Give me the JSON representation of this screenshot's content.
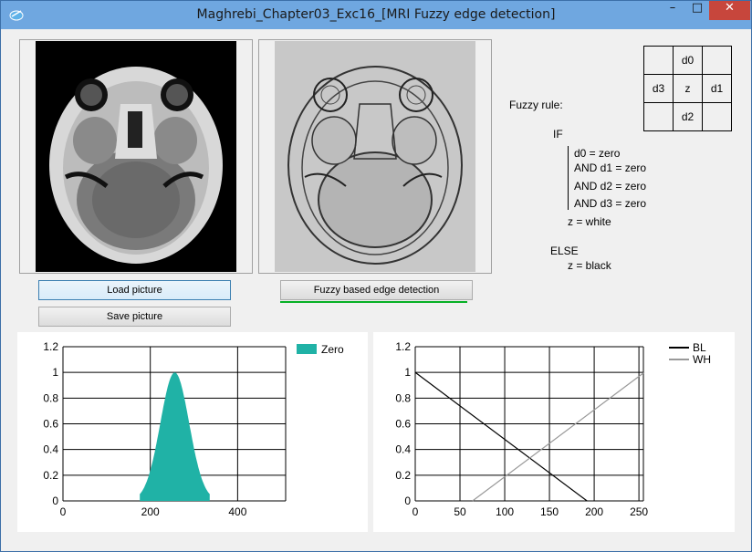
{
  "window": {
    "title": "Maghrebi_Chapter03_Exc16_[MRI Fuzzy edge detection]",
    "controls": {
      "minimize": "–",
      "maximize": "□",
      "close": "✕"
    }
  },
  "buttons": {
    "load": "Load picture",
    "save": "Save picture",
    "fuzzy": "Fuzzy based edge detection"
  },
  "progress": {
    "value": 1.0,
    "color": "#06b025"
  },
  "neighborhood": {
    "top": "d0",
    "left": "d3",
    "center": "z",
    "right": "d1",
    "bottom": "d2"
  },
  "fuzzy_rule": {
    "label": "Fuzzy rule:",
    "if": "IF",
    "conditions": [
      "d0 = zero",
      "AND d1 = zero",
      "AND d2 = zero",
      "AND d3 = zero"
    ],
    "then": "z = white",
    "else": "ELSE",
    "else_then": "z = black"
  },
  "chart_data": [
    {
      "type": "area",
      "legend_position": "top-right",
      "series": [
        {
          "name": "Zero",
          "color": "#20b2a6",
          "mean": 256,
          "sigma": 33,
          "x_range": [
            176,
            336
          ]
        }
      ],
      "xticks": [
        "0",
        "200",
        "400"
      ],
      "yticks": [
        "0",
        "0.2",
        "0.4",
        "0.6",
        "0.8",
        "1",
        "1.2"
      ],
      "xlim": [
        0,
        510
      ],
      "ylim": [
        0,
        1.2
      ],
      "grid": true
    },
    {
      "type": "line",
      "legend_position": "top-right",
      "series": [
        {
          "name": "BL",
          "color": "#000000",
          "x": [
            0,
            192
          ],
          "y": [
            1,
            0
          ]
        },
        {
          "name": "WH",
          "color": "#999999",
          "x": [
            64,
            256
          ],
          "y": [
            0,
            1
          ]
        }
      ],
      "xticks": [
        "0",
        "50",
        "100",
        "150",
        "200",
        "250"
      ],
      "yticks": [
        "0",
        "0.2",
        "0.4",
        "0.6",
        "0.8",
        "1",
        "1.2"
      ],
      "xlim": [
        0,
        255
      ],
      "ylim": [
        0,
        1.2
      ],
      "grid": true
    }
  ]
}
